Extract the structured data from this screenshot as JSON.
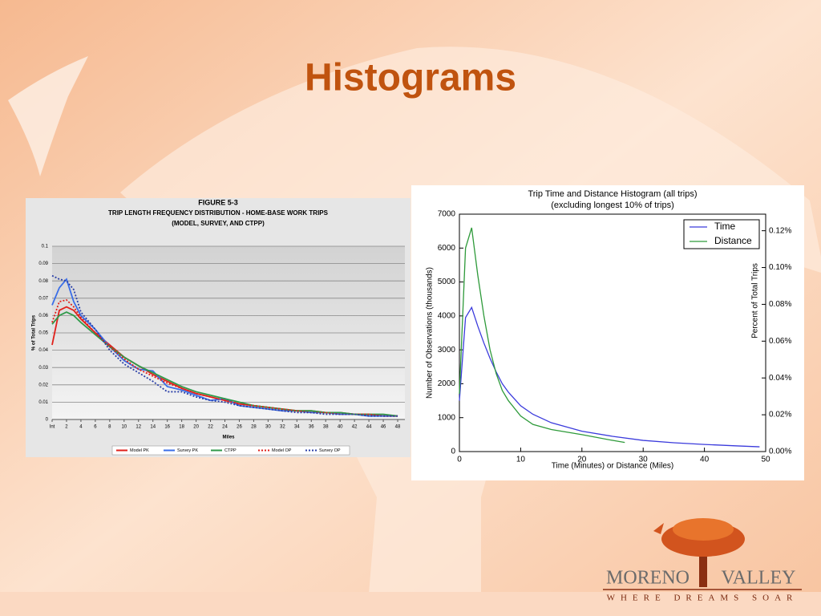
{
  "title": "Histograms",
  "logo": {
    "word1": "MORENO",
    "word2": "VALLEY",
    "tagline": "WHERE DREAMS SOAR"
  },
  "chart_data": [
    {
      "type": "line",
      "title": "FIGURE 5-3",
      "subtitle": [
        "TRIP LENGTH FREQUENCY DISTRIBUTION - HOME-BASE WORK TRIPS",
        "(MODEL, SURVEY, AND CTPP)"
      ],
      "xlabel": "Miles",
      "ylabel": "% of Total Trips",
      "x": [
        0,
        1,
        2,
        3,
        4,
        6,
        8,
        10,
        12,
        14,
        16,
        18,
        20,
        22,
        24,
        26,
        28,
        30,
        32,
        34,
        36,
        38,
        40,
        42,
        44,
        46,
        48
      ],
      "xlim": [
        0,
        49
      ],
      "xticks": [
        {
          "value": 0,
          "label": "Int"
        },
        2,
        4,
        6,
        8,
        10,
        12,
        14,
        16,
        18,
        20,
        22,
        24,
        26,
        28,
        30,
        32,
        34,
        36,
        38,
        40,
        42,
        44,
        46,
        48
      ],
      "ylim": [
        0,
        0.1
      ],
      "yticks": [
        0,
        0.01,
        0.02,
        0.03,
        0.04,
        0.05,
        0.06,
        0.07,
        0.08,
        0.09,
        0.1
      ],
      "grid": true,
      "legend": "bottom",
      "series": [
        {
          "name": "Model PK",
          "color": "#e0201a",
          "style": "solid",
          "values": [
            0.043,
            0.063,
            0.065,
            0.063,
            0.058,
            0.05,
            0.043,
            0.036,
            0.031,
            0.026,
            0.022,
            0.018,
            0.015,
            0.013,
            0.011,
            0.009,
            0.008,
            0.007,
            0.006,
            0.005,
            0.005,
            0.004,
            0.004,
            0.003,
            0.003,
            0.002,
            0.002
          ]
        },
        {
          "name": "Survey PK",
          "color": "#3a6ee8",
          "style": "solid",
          "values": [
            0.066,
            0.076,
            0.081,
            0.068,
            0.06,
            0.052,
            0.042,
            0.034,
            0.029,
            0.028,
            0.019,
            0.017,
            0.014,
            0.011,
            0.012,
            0.008,
            0.007,
            0.006,
            0.005,
            0.005,
            0.004,
            0.004,
            0.003,
            0.003,
            0.002,
            0.002,
            0.002
          ]
        },
        {
          "name": "CTPP",
          "color": "#2f9a4a",
          "style": "solid",
          "values": [
            0.055,
            0.06,
            0.062,
            0.06,
            0.056,
            0.049,
            0.042,
            0.036,
            0.031,
            0.027,
            0.023,
            0.019,
            0.016,
            0.014,
            0.012,
            0.01,
            0.008,
            0.007,
            0.006,
            0.005,
            0.005,
            0.004,
            0.004,
            0.003,
            0.003,
            0.003,
            0.002
          ]
        },
        {
          "name": "Model OP",
          "color": "#e0201a",
          "style": "dotted",
          "values": [
            0.056,
            0.068,
            0.069,
            0.065,
            0.059,
            0.05,
            0.042,
            0.035,
            0.029,
            0.025,
            0.021,
            0.018,
            0.015,
            0.013,
            0.011,
            0.009,
            0.008,
            0.007,
            0.006,
            0.005,
            0.004,
            0.004,
            0.003,
            0.003,
            0.003,
            0.002,
            0.002
          ]
        },
        {
          "name": "Survey OP",
          "color": "#2a3fa8",
          "style": "dotted",
          "values": [
            0.083,
            0.081,
            0.08,
            0.075,
            0.062,
            0.052,
            0.04,
            0.032,
            0.027,
            0.022,
            0.016,
            0.016,
            0.013,
            0.011,
            0.01,
            0.008,
            0.007,
            0.006,
            0.005,
            0.004,
            0.004,
            0.003,
            0.003,
            0.003,
            0.002,
            0.002,
            0.002
          ]
        }
      ]
    },
    {
      "type": "line",
      "title": "Trip Time and Distance Histogram (all trips)",
      "subtitle": [
        "(excluding longest 10% of trips)"
      ],
      "xlabel": "Time (Minutes) or Distance (Miles)",
      "ylabel": "Number of Observations (thousands)",
      "y2label": "Percent of Total Trips",
      "xlim": [
        0,
        50
      ],
      "xticks": [
        0,
        10,
        20,
        30,
        40,
        50
      ],
      "ylim": [
        0,
        7000
      ],
      "yticks": [
        0,
        1000,
        2000,
        3000,
        4000,
        5000,
        6000,
        7000
      ],
      "y2lim": [
        0,
        0.129
      ],
      "y2ticks": [
        {
          "value": 0,
          "label": "0.00%"
        },
        {
          "value": 0.02,
          "label": "0.02%"
        },
        {
          "value": 0.04,
          "label": "0.04%"
        },
        {
          "value": 0.06,
          "label": "0.06%"
        },
        {
          "value": 0.08,
          "label": "0.08%"
        },
        {
          "value": 0.1,
          "label": "0.10%"
        },
        {
          "value": 0.12,
          "label": "0.12%"
        }
      ],
      "grid": false,
      "legend": "upper right",
      "series": [
        {
          "name": "Time",
          "color": "#3b3bdc",
          "style": "solid",
          "x": [
            0,
            1,
            2,
            3,
            4,
            5,
            6,
            7,
            8,
            10,
            12,
            15,
            20,
            25,
            30,
            35,
            40,
            45,
            49
          ],
          "values": [
            1500,
            3950,
            4250,
            3700,
            3200,
            2750,
            2350,
            2000,
            1750,
            1350,
            1100,
            850,
            600,
            450,
            330,
            260,
            210,
            170,
            140
          ]
        },
        {
          "name": "Distance",
          "color": "#2e9a3a",
          "style": "solid",
          "x": [
            0,
            1,
            2,
            3,
            4,
            5,
            6,
            7,
            8,
            10,
            12,
            15,
            20,
            25,
            27
          ],
          "values": [
            1700,
            6000,
            6600,
            5200,
            4000,
            3000,
            2300,
            1800,
            1500,
            1050,
            800,
            650,
            500,
            330,
            270
          ]
        }
      ]
    }
  ]
}
